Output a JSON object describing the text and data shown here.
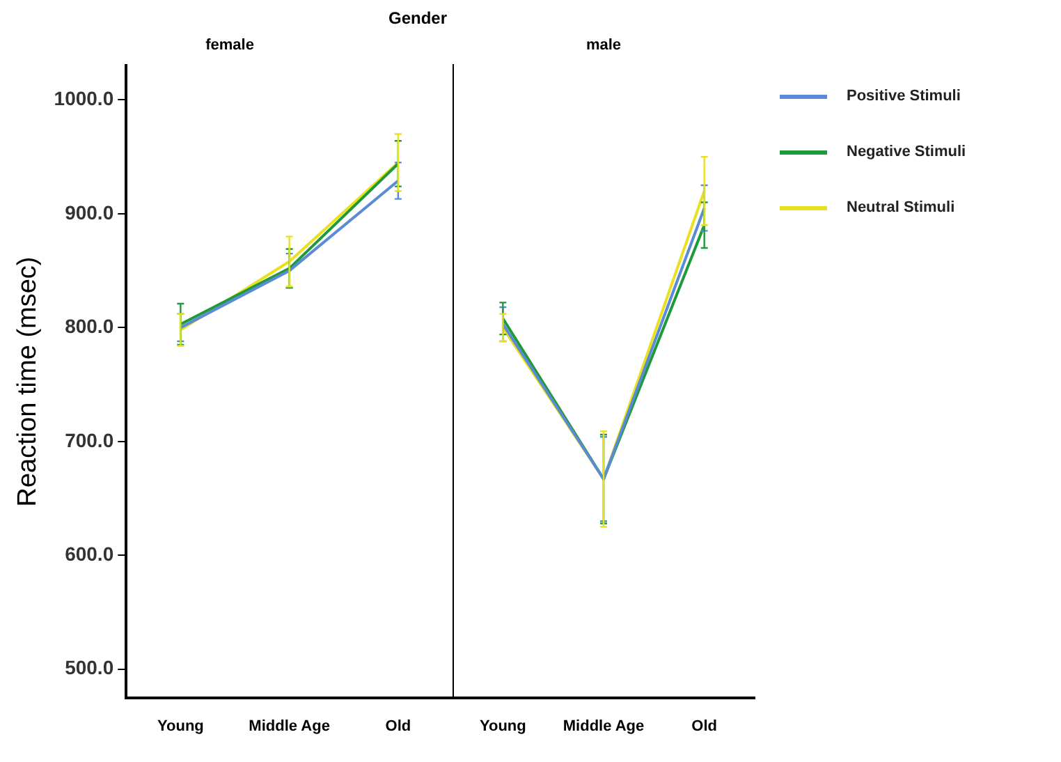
{
  "chart_data": [
    {
      "type": "line",
      "title": "Gender",
      "subtitle": "female",
      "ylabel": "Reaction time (msec)",
      "categories": [
        "Young",
        "Middle Age",
        "Old"
      ],
      "series": [
        {
          "color": "#5b8bd6",
          "values": [
            800,
            850,
            929
          ],
          "errors": [
            12,
            15,
            16
          ]
        },
        {
          "color": "#1f9a3a",
          "values": [
            803,
            852,
            944
          ],
          "errors": [
            18,
            17,
            20
          ]
        },
        {
          "color": "#e8e020",
          "values": [
            798,
            858,
            945
          ],
          "errors": [
            14,
            22,
            25
          ]
        }
      ],
      "ylim": [
        475,
        1030
      ],
      "yticks": [
        {
          "value": 500,
          "label": "500.0"
        },
        {
          "value": 600,
          "label": "600.0"
        },
        {
          "value": 700,
          "label": "700.0"
        },
        {
          "value": 800,
          "label": "800.0"
        },
        {
          "value": 900,
          "label": "900.0"
        },
        {
          "value": 1000,
          "label": "1000.0"
        }
      ],
      "grid": false,
      "marker": "none",
      "line_style": "solid"
    },
    {
      "type": "line",
      "subtitle": "male",
      "categories": [
        "Young",
        "Middle Age",
        "Old"
      ],
      "series": [
        {
          "name": "Positive Stimuli",
          "color": "#5b8bd6",
          "values": [
            803,
            667,
            905
          ],
          "errors": [
            15,
            37,
            20
          ]
        },
        {
          "name": "Negative Stimuli",
          "color": "#1f9a3a",
          "values": [
            808,
            667,
            890
          ],
          "errors": [
            14,
            39,
            20
          ]
        },
        {
          "name": "Neutral Stimuli",
          "color": "#e8e020",
          "values": [
            800,
            667,
            920
          ],
          "errors": [
            12,
            42,
            30
          ]
        }
      ],
      "ylim": [
        475,
        1030
      ],
      "tick_labels": "x",
      "grid": false,
      "legend": "right",
      "marker": "none",
      "line_style": "solid"
    }
  ]
}
